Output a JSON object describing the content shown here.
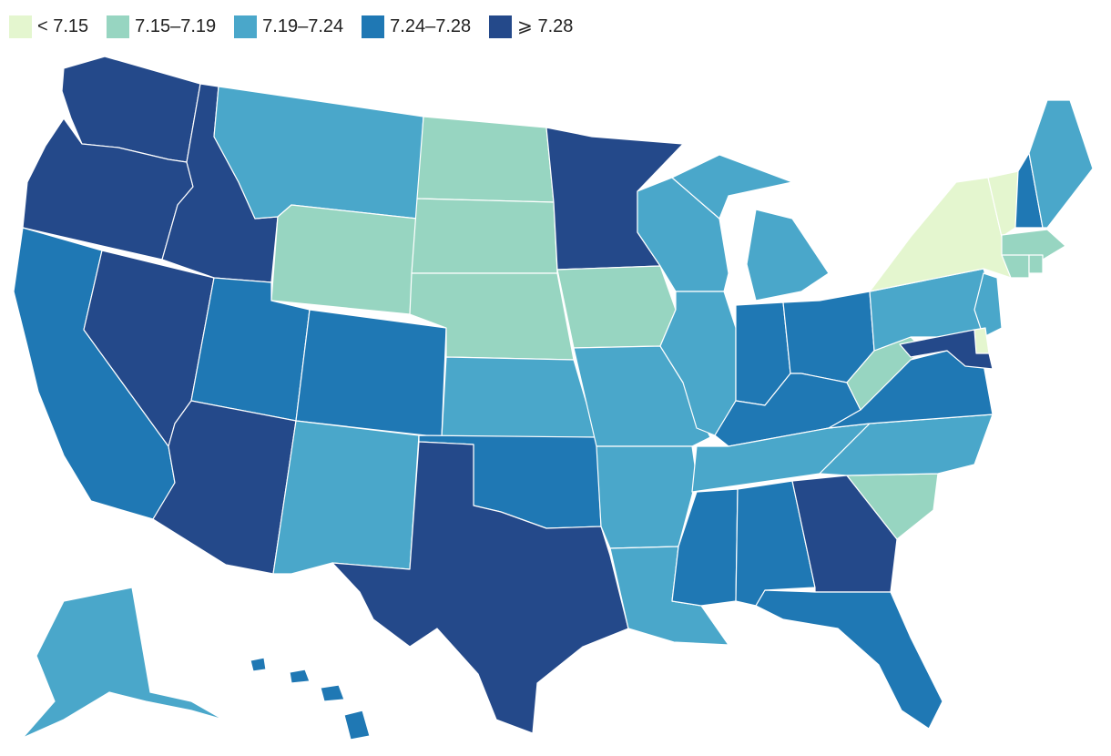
{
  "legend": [
    {
      "label": "< 7.15",
      "color": "#e4f6cf"
    },
    {
      "label": "7.15–7.19",
      "color": "#97d5c1"
    },
    {
      "label": "7.19–7.24",
      "color": "#4aa7ca"
    },
    {
      "label": "7.24–7.28",
      "color": "#1f78b4"
    },
    {
      "label": "⩾ 7.28",
      "color": "#24498a"
    }
  ],
  "states": {
    "WA": 4,
    "OR": 4,
    "CA": 3,
    "NV": 4,
    "ID": 4,
    "MT": 2,
    "WY": 1,
    "UT": 3,
    "AZ": 4,
    "CO": 3,
    "NM": 2,
    "ND": 1,
    "SD": 1,
    "NE": 1,
    "KS": 2,
    "OK": 3,
    "TX": 4,
    "MN": 4,
    "IA": 1,
    "MO": 2,
    "AR": 2,
    "LA": 2,
    "WI": 2,
    "IL": 2,
    "MI": 2,
    "IN": 3,
    "OH": 3,
    "KY": 3,
    "TN": 2,
    "MS": 3,
    "AL": 3,
    "GA": 4,
    "FL": 3,
    "SC": 1,
    "NC": 2,
    "VA": 3,
    "WV": 1,
    "PA": 2,
    "NY": 0,
    "VT": 0,
    "NH": 3,
    "ME": 2,
    "MA": 1,
    "RI": 1,
    "CT": 1,
    "NJ": 2,
    "DE": 0,
    "MD": 4,
    "AK": 2,
    "HI": 3
  }
}
